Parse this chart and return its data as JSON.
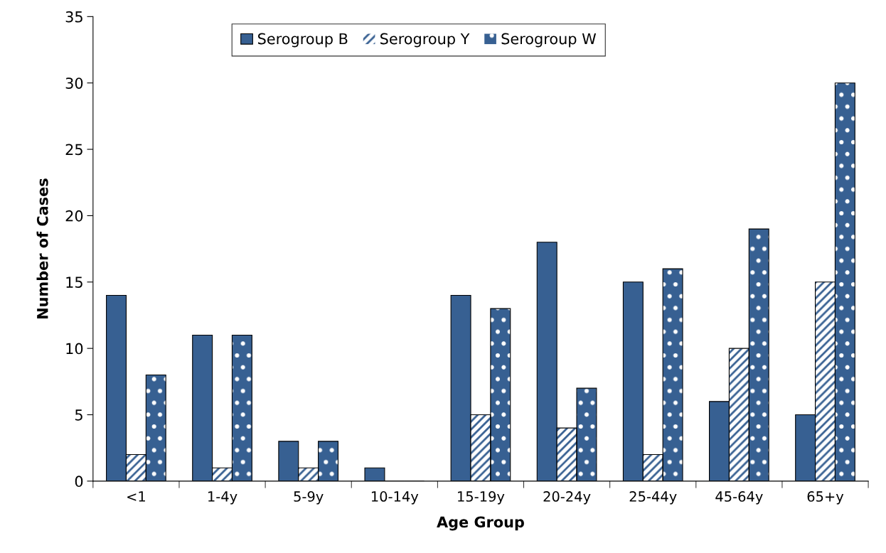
{
  "chart_data": {
    "type": "bar",
    "xlabel": "Age Group",
    "ylabel": "Number of Cases",
    "categories": [
      "<1",
      "1-4y",
      "5-9y",
      "10-14y",
      "15-19y",
      "20-24y",
      "25-44y",
      "45-64y",
      "65+y"
    ],
    "series": [
      {
        "name": "Serogroup B",
        "color": "#376092",
        "values": [
          14,
          11,
          3,
          1,
          14,
          18,
          15,
          6,
          5
        ]
      },
      {
        "name": "Serogroup Y",
        "color": "#376092",
        "values": [
          2,
          1,
          1,
          0,
          5,
          4,
          2,
          10,
          15
        ]
      },
      {
        "name": "Serogroup W",
        "color": "#376092",
        "values": [
          8,
          11,
          3,
          0,
          13,
          7,
          16,
          19,
          30
        ]
      }
    ],
    "ylim": [
      0,
      35
    ],
    "yticks": [
      0,
      5,
      10,
      15,
      20,
      25,
      30,
      35
    ],
    "grid": false,
    "legend": "top"
  }
}
